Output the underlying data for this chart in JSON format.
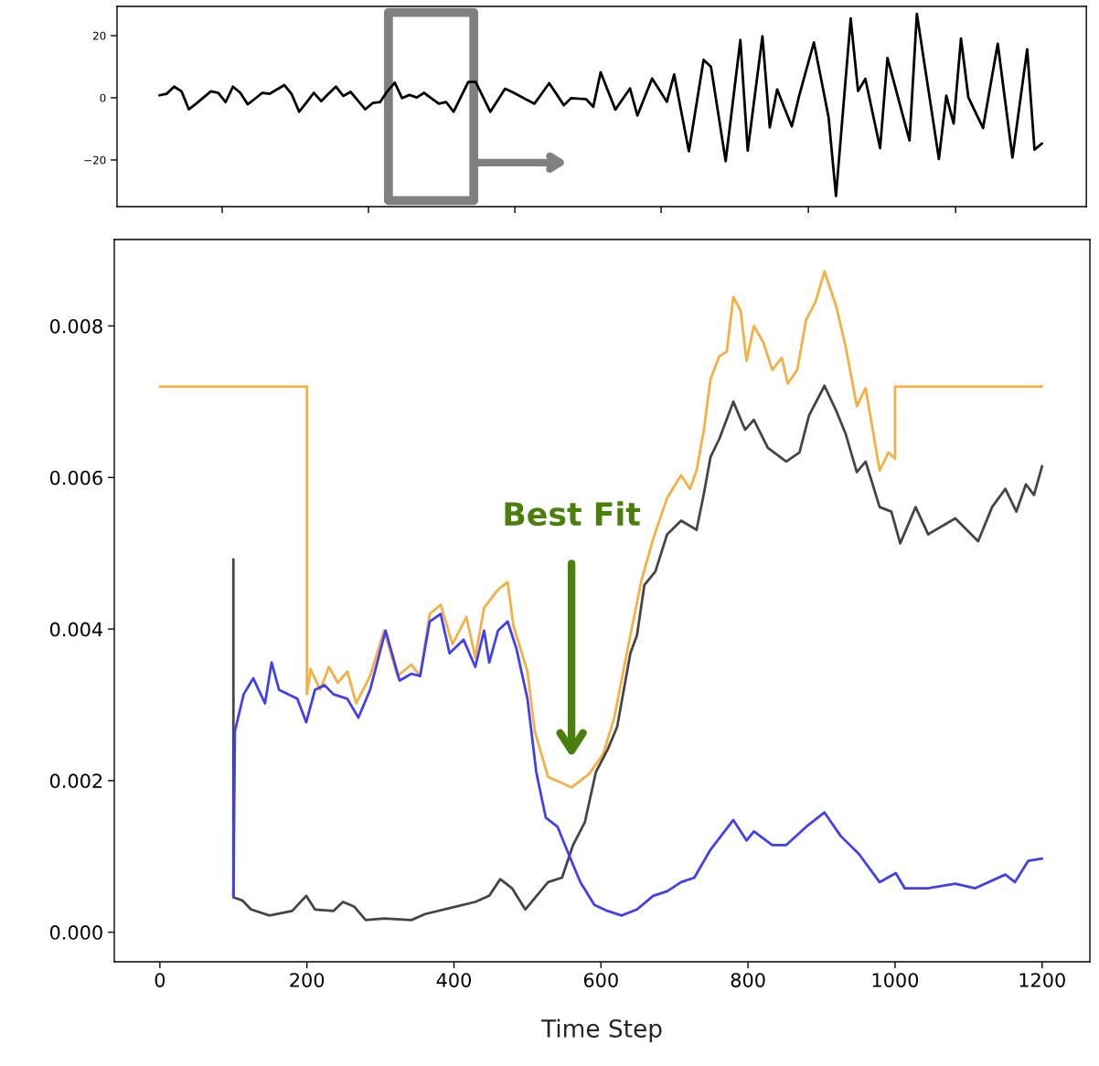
{
  "chart_data": [
    {
      "type": "line",
      "ylim": [
        -35,
        29.4
      ],
      "yticks": [
        {
          "value": -20,
          "label": "−20"
        },
        0,
        20
      ],
      "tick_labels": "y",
      "categories": [
        null,
        null,
        null,
        null,
        null,
        null,
        null,
        null,
        null,
        null,
        null,
        null,
        null,
        null,
        null,
        null,
        null,
        null,
        null,
        null,
        null,
        null,
        null,
        null,
        null,
        null,
        null,
        null,
        null,
        null,
        null,
        null,
        null,
        null,
        null,
        null,
        null,
        null,
        null,
        null,
        null,
        null,
        null,
        null,
        null,
        null,
        null,
        null,
        null,
        null,
        null,
        null,
        null,
        null,
        null,
        null,
        null,
        null,
        null,
        null,
        null,
        null,
        null,
        null,
        null,
        null,
        null,
        null,
        null,
        null,
        null,
        null,
        null,
        null,
        null,
        null,
        null,
        null,
        null,
        null,
        null,
        null,
        null,
        null,
        null,
        null,
        null,
        null,
        null,
        null,
        null,
        null,
        null,
        null,
        null,
        null,
        null,
        null,
        null,
        null,
        null,
        null,
        null,
        null,
        null,
        null,
        null,
        null,
        null,
        null,
        null,
        null,
        null,
        null,
        null,
        null,
        null,
        null,
        null,
        null,
        null
      ],
      "series": [
        {
          "color": "#000000",
          "values": [
            0.8,
            1.3,
            3.6,
            2.1,
            -3.7,
            -1.9,
            0.1,
            2.1,
            1.6,
            -1.4,
            3.6,
            1.6,
            -2.1,
            -0.3,
            1.6,
            1.3,
            2.7,
            4.1,
            1.1,
            -4.5,
            -1.5,
            1.6,
            -1.1,
            1.3,
            3.6,
            0.6,
            1.9,
            -0.9,
            -3.7,
            -1.7,
            -1.4,
            2.1,
            4.9,
            -0.1,
            0.9,
            0.1,
            1.6,
            -0.2,
            -1.9,
            -1.4,
            -4.5,
            0.3,
            5.1,
            5.1,
            0.3,
            -4.5,
            -0.8,
            2.9,
            1.8,
            0.6,
            -0.7,
            -1.9,
            1.4,
            4.7,
            1.2,
            -2.4,
            -0.1,
            -0.3,
            -0.4,
            -2.9,
            8.2,
            2.2,
            -3.8,
            -0.4,
            3.0,
            -5.7,
            0.3,
            6.2,
            2.5,
            -1.3,
            7.5,
            -4.9,
            -17.2,
            -2.5,
            12.2,
            10.0,
            -5.2,
            -20.4,
            -0.9,
            18.6,
            -17.0,
            1.4,
            19.8,
            -9.5,
            2.7,
            -3.3,
            -9.2,
            0.7,
            9.3,
            17.8,
            5.8,
            -6.3,
            -31.6,
            -3.0,
            25.5,
            2.2,
            6.1,
            -5.1,
            -16.2,
            12.8,
            4.0,
            -4.9,
            -13.7,
            27.0,
            11.4,
            -4.1,
            -19.7,
            0.7,
            -8.3,
            19.1,
            0.2,
            -4.8,
            -9.7,
            3.9,
            17.4,
            -0.9,
            -19.2,
            -1.8,
            15.6,
            -16.7,
            -14.7
          ]
        }
      ]
    },
    {
      "type": "line",
      "xlabel": "Time Step",
      "xlim": [
        -62,
        1265
      ],
      "xticks": [
        0,
        200,
        400,
        600,
        800,
        1000,
        1200
      ],
      "ylim": [
        -0.00039,
        0.00914
      ],
      "yticks": [
        {
          "value": 0,
          "label": "0.000"
        },
        {
          "value": 0.002,
          "label": "0.002"
        },
        {
          "value": 0.004,
          "label": "0.004"
        },
        {
          "value": 0.006,
          "label": "0.006"
        },
        {
          "value": 0.008,
          "label": "0.008"
        }
      ],
      "annotations": [
        "Best Fit"
      ],
      "series": [
        {
          "color": "#f5b043",
          "x": [
            0,
            200,
            200,
            205,
            218,
            230,
            242,
            255,
            267,
            286,
            305,
            323,
            342,
            354,
            367,
            382,
            398,
            417,
            429,
            441,
            460,
            473,
            481,
            500,
            510,
            528,
            560,
            584,
            603,
            618,
            640,
            655,
            671,
            690,
            709,
            721,
            730,
            740,
            749,
            761,
            771,
            780,
            790,
            798,
            808,
            821,
            833,
            846,
            854,
            867,
            879,
            892,
            904,
            920,
            933,
            948,
            960,
            979,
            991,
            1000,
            1000,
            1200
          ],
          "values": [
            0.0072,
            0.0072,
            0.00314,
            0.00347,
            0.0032,
            0.0035,
            0.00329,
            0.00344,
            0.00302,
            0.00338,
            0.00398,
            0.00338,
            0.00353,
            0.00338,
            0.0042,
            0.00432,
            0.0038,
            0.00416,
            0.00362,
            0.00428,
            0.00452,
            0.00462,
            0.00404,
            0.00344,
            0.00265,
            0.00205,
            0.00191,
            0.00209,
            0.00235,
            0.00283,
            0.00392,
            0.00464,
            0.00519,
            0.00573,
            0.00603,
            0.00585,
            0.00609,
            0.00663,
            0.0073,
            0.0076,
            0.00766,
            0.00838,
            0.0082,
            0.00754,
            0.008,
            0.00778,
            0.00742,
            0.00758,
            0.00724,
            0.00742,
            0.00808,
            0.00832,
            0.00872,
            0.00826,
            0.00772,
            0.00694,
            0.00718,
            0.00609,
            0.00633,
            0.00625,
            0.0072,
            0.0072
          ]
        },
        {
          "color": "#454545",
          "x": [
            100,
            100,
            112,
            124,
            149,
            180,
            199,
            211,
            236,
            249,
            264,
            280,
            305,
            342,
            361,
            404,
            429,
            448,
            463,
            479,
            497,
            528,
            547,
            562,
            578,
            593,
            609,
            622,
            640,
            649,
            659,
            674,
            690,
            709,
            730,
            740,
            749,
            761,
            780,
            796,
            808,
            827,
            852,
            870,
            883,
            904,
            920,
            933,
            948,
            960,
            979,
            995,
            1007,
            1028,
            1045,
            1082,
            1113,
            1132,
            1150,
            1165,
            1178,
            1189,
            1200
          ],
          "values": [
            0.00492,
            0.00046,
            0.00042,
            0.0003,
            0.00022,
            0.00028,
            0.00048,
            0.0003,
            0.00028,
            0.0004,
            0.00034,
            0.00016,
            0.00018,
            0.00016,
            0.00024,
            0.00034,
            0.0004,
            0.00048,
            0.0007,
            0.00058,
            0.0003,
            0.00066,
            0.00072,
            0.00115,
            0.00145,
            0.00211,
            0.00241,
            0.00271,
            0.00368,
            0.00392,
            0.00458,
            0.00476,
            0.00525,
            0.00543,
            0.00531,
            0.00579,
            0.00627,
            0.00651,
            0.007,
            0.00663,
            0.00676,
            0.00639,
            0.00621,
            0.00633,
            0.00682,
            0.00721,
            0.00688,
            0.00657,
            0.00607,
            0.00621,
            0.00561,
            0.00555,
            0.00513,
            0.00561,
            0.00525,
            0.00546,
            0.00516,
            0.00561,
            0.00585,
            0.00555,
            0.00591,
            0.00577,
            0.00615
          ]
        },
        {
          "color": "#4040f2",
          "x": [
            100,
            102,
            114,
            127,
            143,
            152,
            162,
            187,
            199,
            211,
            224,
            236,
            255,
            270,
            286,
            307,
            326,
            342,
            354,
            367,
            382,
            394,
            413,
            429,
            441,
            448,
            460,
            473,
            485,
            500,
            512,
            525,
            541,
            556,
            572,
            591,
            609,
            628,
            649,
            671,
            690,
            709,
            727,
            749,
            780,
            798,
            808,
            833,
            852,
            879,
            904,
            926,
            951,
            979,
            1001,
            1013,
            1045,
            1082,
            1109,
            1150,
            1163,
            1181,
            1200
          ],
          "values": [
            0.00046,
            0.00265,
            0.00314,
            0.00335,
            0.00302,
            0.00356,
            0.0032,
            0.00308,
            0.00277,
            0.0032,
            0.00326,
            0.00314,
            0.00308,
            0.00283,
            0.0032,
            0.00398,
            0.00332,
            0.00341,
            0.00338,
            0.0041,
            0.0042,
            0.00368,
            0.00386,
            0.0035,
            0.00398,
            0.00356,
            0.00398,
            0.0041,
            0.00374,
            0.00308,
            0.00211,
            0.00151,
            0.00139,
            0.00103,
            0.00066,
            0.00036,
            0.00028,
            0.00022,
            0.0003,
            0.00048,
            0.00054,
            0.00066,
            0.00072,
            0.00109,
            0.00148,
            0.00121,
            0.00133,
            0.00115,
            0.00115,
            0.00139,
            0.00158,
            0.00127,
            0.00103,
            0.00066,
            0.00078,
            0.00058,
            0.00058,
            0.00064,
            0.00058,
            0.00076,
            0.00066,
            0.00094,
            0.00097
          ]
        }
      ]
    }
  ]
}
